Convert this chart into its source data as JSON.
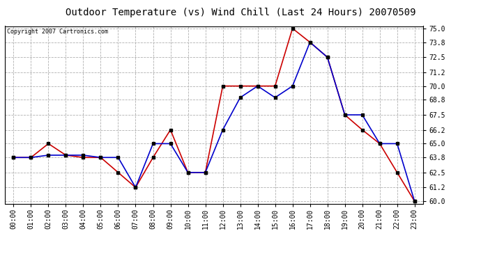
{
  "title": "Outdoor Temperature (vs) Wind Chill (Last 24 Hours) 20070509",
  "copyright": "Copyright 2007 Cartronics.com",
  "hours": [
    "00:00",
    "01:00",
    "02:00",
    "03:00",
    "04:00",
    "05:00",
    "06:00",
    "07:00",
    "08:00",
    "09:00",
    "10:00",
    "11:00",
    "12:00",
    "13:00",
    "14:00",
    "15:00",
    "16:00",
    "17:00",
    "18:00",
    "19:00",
    "20:00",
    "21:00",
    "22:00",
    "23:00"
  ],
  "temp": [
    63.8,
    63.8,
    65.0,
    64.0,
    63.8,
    63.8,
    62.5,
    61.2,
    63.8,
    66.2,
    62.5,
    62.5,
    70.0,
    70.0,
    70.0,
    70.0,
    75.0,
    73.8,
    72.5,
    67.5,
    66.2,
    65.0,
    62.5,
    60.0
  ],
  "wind_chill": [
    63.8,
    63.8,
    64.0,
    64.0,
    64.0,
    63.8,
    63.8,
    61.2,
    65.0,
    65.0,
    62.5,
    62.5,
    66.2,
    69.0,
    70.0,
    69.0,
    70.0,
    73.8,
    72.5,
    67.5,
    67.5,
    65.0,
    65.0,
    60.0
  ],
  "temp_color": "#cc0000",
  "wind_chill_color": "#0000cc",
  "ylim_min": 60.0,
  "ylim_max": 75.0,
  "yticks": [
    60.0,
    61.2,
    62.5,
    63.8,
    65.0,
    66.2,
    67.5,
    68.8,
    70.0,
    71.2,
    72.5,
    73.8,
    75.0
  ],
  "bg_color": "#ffffff",
  "plot_bg_color": "#ffffff",
  "grid_color": "#b0b0b0",
  "marker": "s",
  "marker_color": "#000000",
  "marker_size": 2.5,
  "linewidth": 1.2,
  "title_fontsize": 10,
  "copyright_fontsize": 6,
  "tick_fontsize": 7,
  "border_color": "#000000"
}
